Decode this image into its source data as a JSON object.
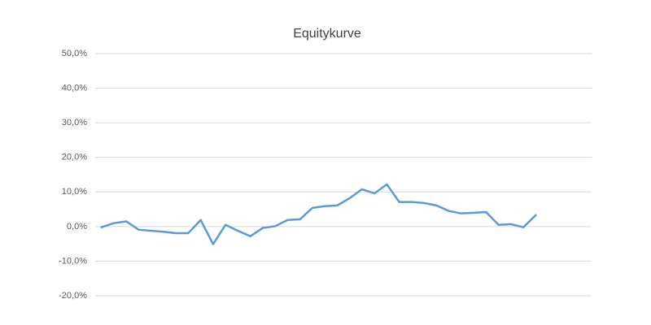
{
  "chart_data": {
    "type": "line",
    "title": "Equitykurve",
    "categories": [
      null,
      null,
      null,
      null,
      null,
      null,
      null,
      null,
      null,
      null,
      null,
      null,
      null,
      null,
      null,
      null,
      null,
      null,
      null,
      null,
      null,
      null,
      null,
      null,
      null,
      null,
      null,
      null,
      null,
      null,
      null,
      null,
      null,
      null,
      null,
      null,
      null,
      null,
      null,
      null
    ],
    "series": [
      {
        "name": "Equitykurve",
        "color": "#5b9bd5",
        "values": [
          -0.2,
          1.0,
          1.5,
          -0.9,
          -1.2,
          -1.5,
          -1.9,
          -1.9,
          1.9,
          -5.1,
          0.5,
          -1.2,
          -2.8,
          -0.4,
          0.1,
          1.9,
          2.1,
          5.4,
          5.9,
          6.1,
          8.2,
          10.8,
          9.6,
          12.2,
          7.1,
          7.1,
          6.8,
          6.1,
          4.5,
          3.8,
          4.0,
          4.2,
          0.5,
          0.7,
          -0.2,
          3.3,
          null,
          null,
          null,
          null
        ]
      }
    ],
    "ylim": [
      -20,
      50
    ],
    "yticks": [
      {
        "value": -20,
        "label": "-20,0%"
      },
      {
        "value": -10,
        "label": "-10,0%"
      },
      {
        "value": 0,
        "label": "0,0%"
      },
      {
        "value": 10,
        "label": "10,0%"
      },
      {
        "value": 20,
        "label": "20,0%"
      },
      {
        "value": 30,
        "label": "30,0%"
      },
      {
        "value": 40,
        "label": "40,0%"
      },
      {
        "value": 50,
        "label": "50,0%"
      }
    ],
    "grid": true
  }
}
